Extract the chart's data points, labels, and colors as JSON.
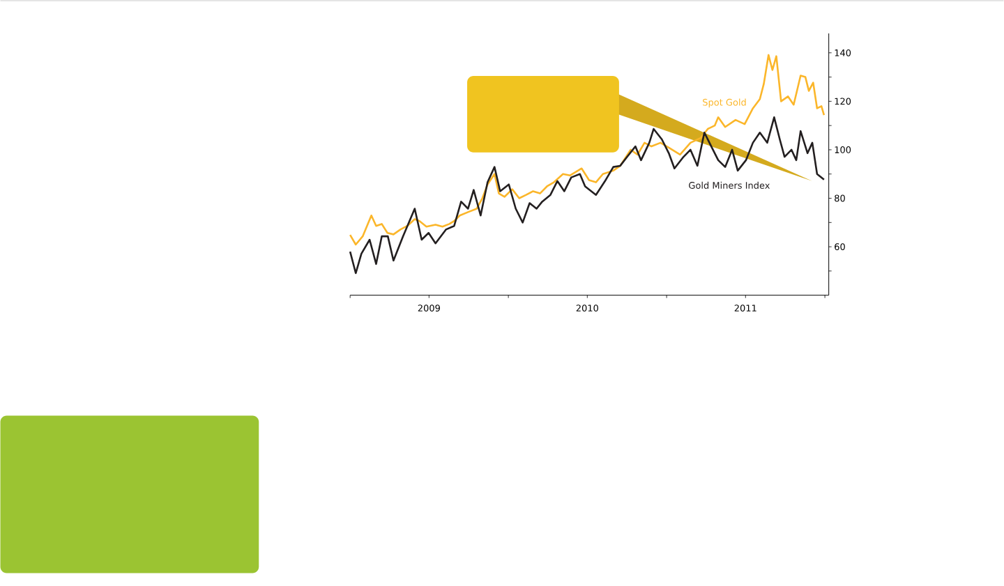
{
  "chart_data": {
    "type": "line",
    "xlim": [
      "2009-01-01",
      "2012-01-10"
    ],
    "xticks": [
      {
        "value": "2009-01-01",
        "label": null
      },
      {
        "value": "2009-07-02",
        "label": "2009"
      },
      {
        "value": "2010-01-01",
        "label": null
      },
      {
        "value": "2010-07-02",
        "label": "2010"
      },
      {
        "value": "2011-01-01",
        "label": null
      },
      {
        "value": "2011-07-02",
        "label": "2011"
      },
      {
        "value": "2012-01-01",
        "label": null
      }
    ],
    "ylim": [
      40,
      148
    ],
    "yticks": [
      {
        "value": 50,
        "label": null
      },
      60,
      {
        "value": 70,
        "label": null
      },
      80,
      {
        "value": 90,
        "label": null
      },
      100,
      {
        "value": 110,
        "label": null
      },
      120,
      {
        "value": 130,
        "label": null
      },
      140
    ],
    "series": [
      {
        "name": "Spot Gold",
        "color": "#fbb62a",
        "x": [
          "2009-01-01",
          "2009-01-14",
          "2009-01-30",
          "2009-02-19",
          "2009-03-02",
          "2009-03-15",
          "2009-03-28",
          "2009-04-11",
          "2009-04-27",
          "2009-05-13",
          "2009-05-30",
          "2009-06-10",
          "2009-06-26",
          "2009-07-17",
          "2009-08-02",
          "2009-08-18",
          "2009-08-29",
          "2009-09-11",
          "2009-09-30",
          "2009-10-20",
          "2009-11-02",
          "2009-11-14",
          "2009-11-30",
          "2009-12-10",
          "2009-12-23",
          "2010-01-10",
          "2010-01-26",
          "2010-02-11",
          "2010-02-27",
          "2010-03-15",
          "2010-03-31",
          "2010-04-16",
          "2010-05-07",
          "2010-05-23",
          "2010-06-19",
          "2010-07-06",
          "2010-07-22",
          "2010-08-07",
          "2010-08-31",
          "2010-09-16",
          "2010-10-10",
          "2010-10-26",
          "2010-11-11",
          "2010-11-27",
          "2010-12-18",
          "2011-01-06",
          "2011-02-01",
          "2011-02-25",
          "2011-03-21",
          "2011-04-06",
          "2011-04-22",
          "2011-04-30",
          "2011-05-16",
          "2011-06-09",
          "2011-06-30",
          "2011-07-19",
          "2011-08-04",
          "2011-08-13",
          "2011-08-24",
          "2011-09-02",
          "2011-09-11",
          "2011-09-22",
          "2011-10-08",
          "2011-10-21",
          "2011-11-06",
          "2011-11-17",
          "2011-11-25",
          "2011-12-05",
          "2011-12-14",
          "2011-12-24",
          "2011-12-30"
        ],
        "values": [
          64.9,
          60.9,
          64.3,
          72.9,
          68.6,
          69.4,
          65.7,
          65.1,
          67.1,
          68.6,
          71.4,
          70.6,
          68.3,
          69.1,
          68.3,
          69.4,
          70.6,
          72.9,
          74.3,
          75.7,
          80,
          85.7,
          90,
          82,
          80.6,
          83.7,
          80,
          81.4,
          82.9,
          82,
          84.9,
          86.6,
          90,
          89.4,
          92.3,
          87.5,
          86.6,
          90,
          91.4,
          93.4,
          100,
          98,
          102.9,
          101.4,
          102.9,
          100.9,
          98,
          102.9,
          104.9,
          108.6,
          110,
          113.4,
          109.4,
          112.3,
          110.6,
          117.1,
          120.9,
          127.1,
          139.1,
          132.9,
          138.6,
          120,
          122,
          118.6,
          130.6,
          130,
          124.3,
          127.7,
          117.1,
          118,
          114.3
        ]
      },
      {
        "name": "Gold Miners Index",
        "color": "#231f20",
        "x": [
          "2009-01-01",
          "2009-01-14",
          "2009-01-27",
          "2009-02-15",
          "2009-03-02",
          "2009-03-15",
          "2009-03-29",
          "2009-04-11",
          "2009-05-03",
          "2009-05-30",
          "2009-06-15",
          "2009-07-01",
          "2009-07-17",
          "2009-08-10",
          "2009-08-29",
          "2009-09-14",
          "2009-09-30",
          "2009-10-13",
          "2009-10-29",
          "2009-11-14",
          "2009-11-30",
          "2009-12-13",
          "2010-01-02",
          "2010-01-18",
          "2010-02-03",
          "2010-02-19",
          "2010-03-07",
          "2010-03-20",
          "2010-04-08",
          "2010-04-24",
          "2010-05-10",
          "2010-05-26",
          "2010-06-15",
          "2010-06-27",
          "2010-07-22",
          "2010-08-12",
          "2010-08-31",
          "2010-09-16",
          "2010-10-02",
          "2010-10-21",
          "2010-11-03",
          "2010-11-22",
          "2010-12-02",
          "2010-12-21",
          "2011-01-06",
          "2011-01-19",
          "2011-02-09",
          "2011-02-25",
          "2011-03-13",
          "2011-03-29",
          "2011-04-14",
          "2011-04-30",
          "2011-05-16",
          "2011-06-01",
          "2011-06-14",
          "2011-07-03",
          "2011-07-19",
          "2011-08-04",
          "2011-08-21",
          "2011-09-06",
          "2011-09-19",
          "2011-09-30",
          "2011-10-16",
          "2011-10-27",
          "2011-11-06",
          "2011-11-22",
          "2011-12-03",
          "2011-12-14",
          "2011-12-30"
        ],
        "values": [
          58,
          49.1,
          57.1,
          62.9,
          52.9,
          64.3,
          64.3,
          54.3,
          64.3,
          75.7,
          62.9,
          65.7,
          61.4,
          67.1,
          68.6,
          78.6,
          75.7,
          83.4,
          72.9,
          86.6,
          92.9,
          82.9,
          85.7,
          75.7,
          70,
          78,
          75.7,
          78.6,
          81.4,
          87.1,
          82.9,
          88.6,
          90,
          84.9,
          81.4,
          87.1,
          92.9,
          93.4,
          97.1,
          101.4,
          95.7,
          102.9,
          108.6,
          104.3,
          98.6,
          92.3,
          97.1,
          100,
          93.4,
          107.1,
          101.4,
          95.7,
          92.9,
          100,
          91.4,
          95.7,
          102.9,
          107.1,
          102.9,
          113.4,
          104.3,
          97.1,
          100,
          95.7,
          107.7,
          98.6,
          102.9,
          90,
          87.7
        ]
      }
    ]
  }
}
